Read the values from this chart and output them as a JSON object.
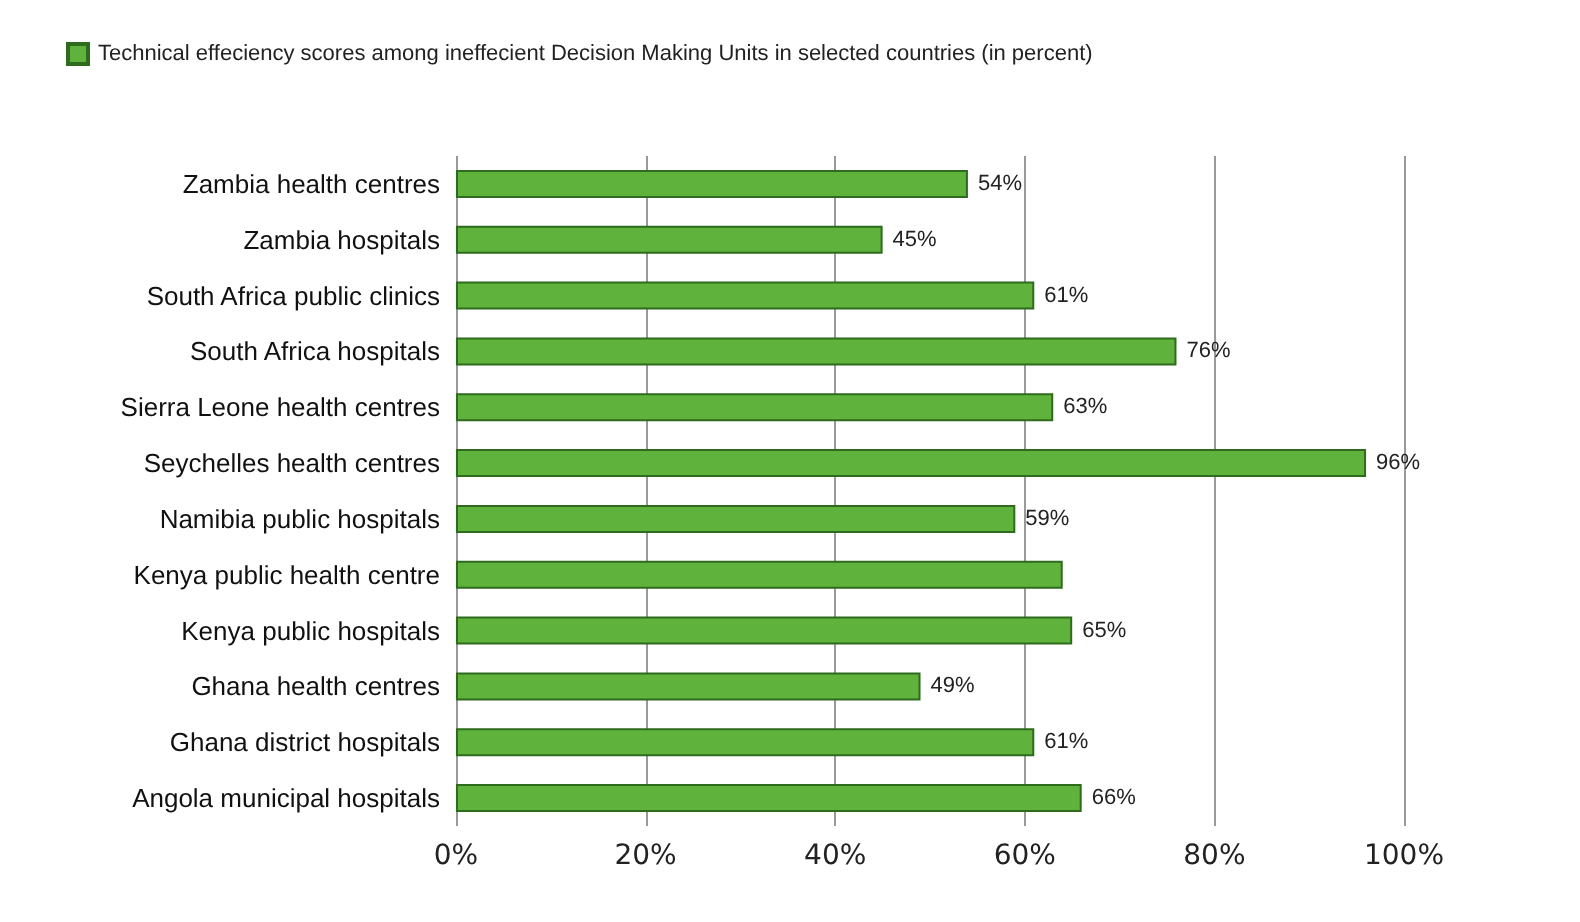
{
  "chart_data": {
    "type": "bar",
    "orientation": "horizontal",
    "categories": [
      "Zambia health centres",
      "Zambia hospitals",
      "South Africa public clinics",
      "South Africa hospitals",
      "Sierra Leone health centres",
      "Seychelles health centres",
      "Namibia public hospitals",
      "Kenya public health centre",
      "Kenya public hospitals",
      "Ghana health centres",
      "Ghana district hospitals",
      "Angola municipal hospitals"
    ],
    "series": [
      {
        "name": "Technical effeciency scores among ineffecient Decision Making Units in selected countries (in percent)",
        "color": "#5fb33c",
        "values": [
          54,
          45,
          61,
          76,
          63,
          96,
          59,
          64,
          65,
          49,
          61,
          66
        ],
        "value_labels": [
          "54%",
          "45%",
          "61%",
          "76%",
          "63%",
          "96%",
          "59%",
          null,
          "65%",
          "49%",
          "61%",
          "66%"
        ]
      }
    ],
    "xlim": [
      0,
      100
    ],
    "xticks": [
      {
        "value": 0,
        "label": "0%"
      },
      {
        "value": 20,
        "label": "20%"
      },
      {
        "value": 40,
        "label": "40%"
      },
      {
        "value": 60,
        "label": "60%"
      },
      {
        "value": 80,
        "label": "80%"
      },
      {
        "value": 100,
        "label": "100%"
      }
    ],
    "grid": "x",
    "legend": "top left"
  }
}
